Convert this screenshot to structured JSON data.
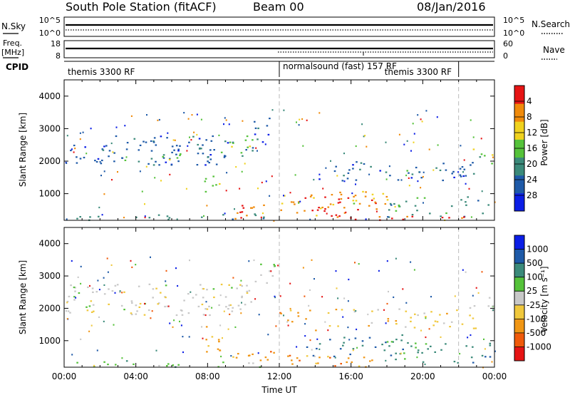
{
  "header": {
    "title": "South Pole Station (fitACF)",
    "beam": "Beam 00",
    "date": "08/Jan/2016"
  },
  "top_panels": {
    "nsky": {
      "label": "N.Sky",
      "right_label": "N.Search",
      "left_ticks": [
        "10^5",
        "10^0"
      ],
      "right_ticks": [
        "10^5",
        "10^0"
      ]
    },
    "freq": {
      "label_line1": "Freq.",
      "label_line2": "[MHz]",
      "right_label": "Nave",
      "left_ticks": [
        "18",
        "8"
      ],
      "right_ticks": [
        "60",
        "0"
      ]
    },
    "cpid": {
      "label": "CPID",
      "segments": [
        {
          "text": "themis 3300 RF",
          "start": 0.0,
          "end": 12.0
        },
        {
          "text": "normalsound (fast) 157 RF",
          "start": 12.0,
          "end": 22.0
        },
        {
          "text": "themis 3300 RF",
          "start": 22.0,
          "end": 24.0
        }
      ]
    }
  },
  "chart_data": [
    {
      "type": "heatmap",
      "name": "power",
      "ylabel": "Slant Range [km]",
      "xlim": [
        0,
        24
      ],
      "ylim": [
        180,
        4500
      ],
      "yticks": [
        "1000",
        "2000",
        "3000",
        "4000"
      ],
      "colorbar_label": "Power [dB]",
      "colorbar_ticks": [
        "4",
        "8",
        "12",
        "16",
        "20",
        "24",
        "28"
      ],
      "colors": [
        "#0b1ee6",
        "#1e5aa8",
        "#3b8a7a",
        "#55c23a",
        "#f0d21e",
        "#f08a0a",
        "#e61414"
      ],
      "patches": [
        {
          "t0": 0.1,
          "t1": 2.5,
          "r0": 1800,
          "r1": 2600,
          "c": 1,
          "d": 0.55
        },
        {
          "t0": 2.5,
          "t1": 10.5,
          "r0": 1900,
          "r1": 2800,
          "c": 1,
          "d": 0.6
        },
        {
          "t0": 3.2,
          "t1": 6.5,
          "r0": 2000,
          "r1": 2300,
          "c": 3,
          "d": 0.5
        },
        {
          "t0": 8.5,
          "t1": 10.5,
          "r0": 2200,
          "r1": 2800,
          "c": 3,
          "d": 0.55
        },
        {
          "t0": 10.5,
          "t1": 11.8,
          "r0": 2600,
          "r1": 3500,
          "c": 1,
          "d": 0.45
        },
        {
          "t0": 0.5,
          "t1": 11.5,
          "r0": 200,
          "r1": 400,
          "c": 2,
          "d": 0.5
        },
        {
          "t0": 9.0,
          "t1": 12.0,
          "r0": 250,
          "r1": 700,
          "c": 5,
          "d": 0.55
        },
        {
          "t0": 12.0,
          "t1": 18.0,
          "r0": 300,
          "r1": 1000,
          "c": 5,
          "d": 0.55
        },
        {
          "t0": 13.0,
          "t1": 15.5,
          "r0": 300,
          "r1": 900,
          "c": 6,
          "d": 0.45
        },
        {
          "t0": 15.0,
          "t1": 18.0,
          "r0": 600,
          "r1": 1100,
          "c": 4,
          "d": 0.45
        },
        {
          "t0": 18.0,
          "t1": 24.0,
          "r0": 300,
          "r1": 1000,
          "c": 2,
          "d": 0.4
        },
        {
          "t0": 14.0,
          "t1": 23.0,
          "r0": 1400,
          "r1": 2000,
          "c": 1,
          "d": 0.45
        },
        {
          "t0": 19.0,
          "t1": 21.0,
          "r0": 1500,
          "r1": 1800,
          "c": 2,
          "d": 0.4
        },
        {
          "t0": 22.5,
          "t1": 23.9,
          "r0": 1900,
          "r1": 2400,
          "c": 3,
          "d": 0.55
        },
        {
          "t0": 7.8,
          "t1": 8.8,
          "r0": 900,
          "r1": 1800,
          "c": 3,
          "d": 0.45
        },
        {
          "t0": 12.0,
          "t1": 24.0,
          "r0": 200,
          "r1": 350,
          "c": 6,
          "d": 0.35
        }
      ]
    },
    {
      "type": "heatmap",
      "name": "velocity",
      "xlabel": "Time UT",
      "ylabel": "Slant Range [km]",
      "xlim": [
        0,
        24
      ],
      "ylim": [
        180,
        4500
      ],
      "xticks": [
        "00:00",
        "04:00",
        "08:00",
        "12:00",
        "16:00",
        "20:00",
        "00:00"
      ],
      "yticks": [
        "1000",
        "2000",
        "3000",
        "4000"
      ],
      "colorbar_label": "Velocity [m s⁻¹]",
      "colorbar_ticks": [
        "1000",
        "500",
        "100",
        "25",
        "-25",
        "-100",
        "-500",
        "-1000"
      ],
      "colors": [
        "#e61414",
        "#f05a0a",
        "#f09614",
        "#f0c83c",
        "#c8c8c8",
        "#55c23a",
        "#3b8a7a",
        "#1e5aa8",
        "#0b1ee6"
      ],
      "patches": [
        {
          "t0": 0.1,
          "t1": 10.5,
          "r0": 1800,
          "r1": 2800,
          "c": 4,
          "d": 0.6
        },
        {
          "t0": 10.5,
          "t1": 11.8,
          "r0": 2600,
          "r1": 3500,
          "c": 4,
          "d": 0.45
        },
        {
          "t0": 0.5,
          "t1": 11.5,
          "r0": 200,
          "r1": 400,
          "c": 5,
          "d": 0.5
        },
        {
          "t0": 7.8,
          "t1": 9.0,
          "r0": 600,
          "r1": 1600,
          "c": 2,
          "d": 0.5
        },
        {
          "t0": 9.0,
          "t1": 12.0,
          "r0": 250,
          "r1": 700,
          "c": 2,
          "d": 0.5
        },
        {
          "t0": 12.0,
          "t1": 18.0,
          "r0": 200,
          "r1": 600,
          "c": 2,
          "d": 0.55
        },
        {
          "t0": 13.5,
          "t1": 15.5,
          "r0": 500,
          "r1": 1200,
          "c": 7,
          "d": 0.35
        },
        {
          "t0": 15.0,
          "t1": 20.0,
          "r0": 600,
          "r1": 1200,
          "c": 6,
          "d": 0.45
        },
        {
          "t0": 18.0,
          "t1": 24.0,
          "r0": 300,
          "r1": 1000,
          "c": 6,
          "d": 0.4
        },
        {
          "t0": 14.0,
          "t1": 23.0,
          "r0": 1400,
          "r1": 2000,
          "c": 3,
          "d": 0.45
        },
        {
          "t0": 22.5,
          "t1": 23.9,
          "r0": 1800,
          "r1": 2400,
          "c": 4,
          "d": 0.5
        },
        {
          "t0": 12.0,
          "t1": 14.0,
          "r0": 1000,
          "r1": 2000,
          "c": 2,
          "d": 0.3
        }
      ]
    }
  ]
}
